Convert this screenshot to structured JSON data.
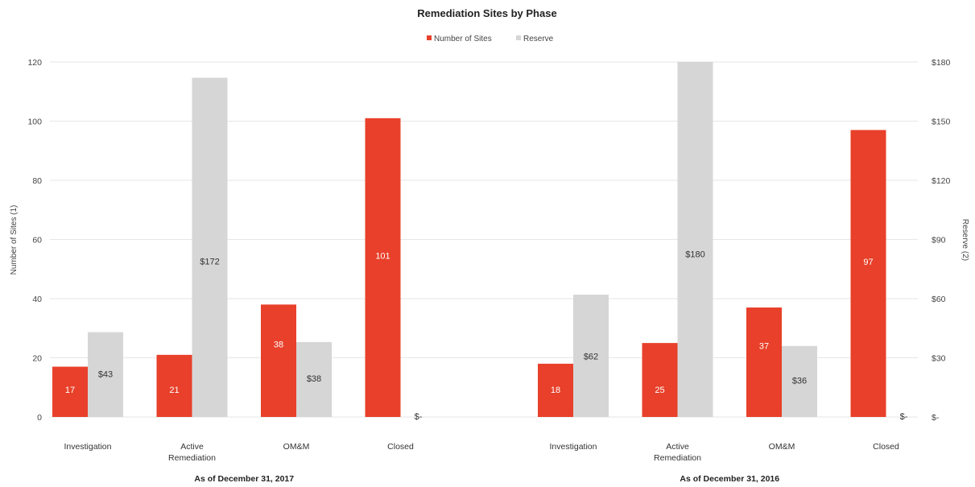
{
  "chart_data": {
    "type": "bar",
    "title": "Remediation Sites by Phase",
    "legend": {
      "placement": "top-center",
      "entries": [
        "Number of Sites",
        "Reserve"
      ]
    },
    "colors": {
      "sites": "#e8402a",
      "reserve": "#d6d6d6",
      "grid": "#e6e6e6"
    },
    "y_left": {
      "label": "Number of Sites (1)",
      "lim": [
        0,
        120
      ],
      "ticks": [
        "0",
        "20",
        "40",
        "60",
        "80",
        "100",
        "120"
      ]
    },
    "y_right": {
      "label": "Reserve (2)",
      "lim": [
        0,
        180
      ],
      "ticks": [
        "$-",
        "$30",
        "$60",
        "$90",
        "$120",
        "$150",
        "$180"
      ]
    },
    "grid": true,
    "groups": [
      {
        "name": "As of December 31, 2017",
        "categories": [
          "Investigation",
          "Active Remediation",
          "OM&M",
          "Closed"
        ],
        "series": [
          {
            "name": "Number of Sites",
            "axis": "left",
            "values": [
              17,
              21,
              38,
              101
            ],
            "labels": [
              "17",
              "21",
              "38",
              "101"
            ]
          },
          {
            "name": "Reserve",
            "axis": "right",
            "values": [
              43,
              172,
              38,
              0
            ],
            "labels": [
              "$43",
              "$172",
              "$38",
              "$-"
            ]
          }
        ]
      },
      {
        "name": "As of December 31, 2016",
        "categories": [
          "Investigation",
          "Active Remediation",
          "OM&M",
          "Closed"
        ],
        "series": [
          {
            "name": "Number of Sites",
            "axis": "left",
            "values": [
              18,
              25,
              37,
              97
            ],
            "labels": [
              "18",
              "25",
              "37",
              "97"
            ]
          },
          {
            "name": "Reserve",
            "axis": "right",
            "values": [
              62,
              180,
              36,
              0
            ],
            "labels": [
              "$62",
              "$180",
              "$36",
              "$-"
            ]
          }
        ]
      }
    ]
  }
}
